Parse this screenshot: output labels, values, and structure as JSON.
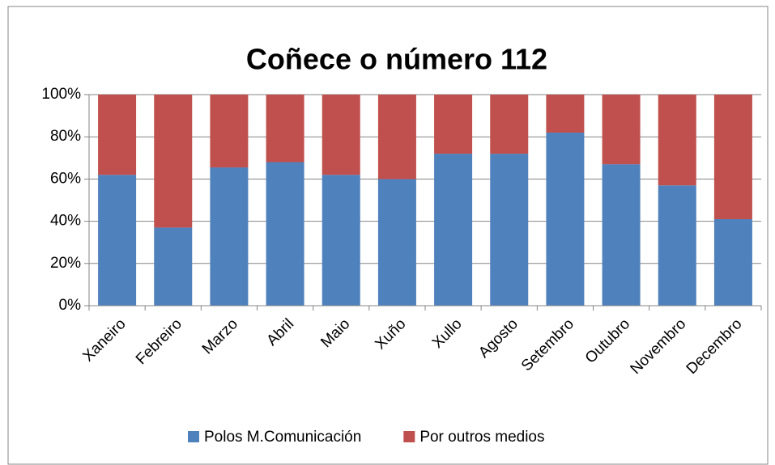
{
  "chart_data": {
    "type": "stacked_bar",
    "title": "Coñece o número 112",
    "categories": [
      "Xaneiro",
      "Febreiro",
      "Marzo",
      "Abril",
      "Maio",
      "Xuño",
      "Xullo",
      "Agosto",
      "Setembro",
      "Outubro",
      "Novembro",
      "Decembro"
    ],
    "series": [
      {
        "name": "Polos M.Comunicación",
        "color": "#4f81bd",
        "values": [
          62,
          37,
          65.5,
          68,
          62,
          60,
          72,
          72,
          82,
          67,
          57,
          41
        ]
      },
      {
        "name": "Por outros medios",
        "color": "#c0504d",
        "values": [
          38,
          63,
          34.5,
          32,
          38,
          40,
          28,
          28,
          18,
          33,
          43,
          59
        ]
      }
    ],
    "ylim": [
      0,
      100
    ],
    "yticks": [
      {
        "value": 0,
        "label": "0%"
      },
      {
        "value": 20,
        "label": "20%"
      },
      {
        "value": 40,
        "label": "40%"
      },
      {
        "value": 60,
        "label": "60%"
      },
      {
        "value": 80,
        "label": "80%"
      },
      {
        "value": 100,
        "label": "100%"
      }
    ],
    "grid": true,
    "legend": "bottom"
  }
}
